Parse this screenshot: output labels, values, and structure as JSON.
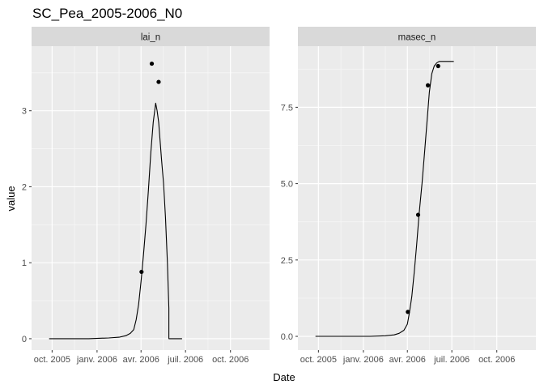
{
  "chart_data": {
    "type": "line",
    "title": "SC_Pea_2005-2006_N0",
    "xlabel": "Date",
    "ylabel": "value",
    "grid": true,
    "facets": [
      {
        "strip": "lai_n",
        "ylim": [
          -0.15,
          3.85
        ],
        "yticks": [
          0,
          1,
          2,
          3
        ],
        "ytick_labels": [
          "0",
          "1",
          "2",
          "3"
        ],
        "simulated": {
          "x": [
            "2005-09-25",
            "2005-12-15",
            "2006-01-25",
            "2006-02-15",
            "2006-03-01",
            "2006-03-10",
            "2006-03-17",
            "2006-03-22",
            "2006-03-27",
            "2006-04-01",
            "2006-04-06",
            "2006-04-11",
            "2006-04-16",
            "2006-04-21",
            "2006-04-26",
            "2006-05-01",
            "2006-05-04",
            "2006-05-07",
            "2006-05-10",
            "2006-05-13",
            "2006-05-17",
            "2006-05-21",
            "2006-05-25",
            "2006-05-28",
            "2006-05-28",
            "2006-06-24"
          ],
          "y": [
            0,
            0,
            0.01,
            0.02,
            0.04,
            0.07,
            0.12,
            0.25,
            0.45,
            0.75,
            1.1,
            1.5,
            1.95,
            2.45,
            2.85,
            3.1,
            3.0,
            2.85,
            2.6,
            2.35,
            2.05,
            1.6,
            1.0,
            0.4,
            0.0,
            0.0
          ]
        },
        "observed": {
          "x": [
            "2006-04-02",
            "2006-04-23",
            "2006-05-07"
          ],
          "y": [
            0.88,
            3.62,
            3.38
          ]
        }
      },
      {
        "strip": "masec_n",
        "ylim": [
          -0.45,
          9.5
        ],
        "yticks": [
          0,
          2.5,
          5,
          7.5
        ],
        "ytick_labels": [
          "0.0",
          "2.5",
          "5.0",
          "7.5"
        ],
        "simulated": {
          "x": [
            "2005-09-25",
            "2006-01-15",
            "2006-02-15",
            "2006-03-05",
            "2006-03-15",
            "2006-03-25",
            "2006-04-01",
            "2006-04-05",
            "2006-04-10",
            "2006-04-15",
            "2006-04-20",
            "2006-04-25",
            "2006-05-01",
            "2006-05-06",
            "2006-05-11",
            "2006-05-16",
            "2006-05-21",
            "2006-05-26",
            "2006-05-31",
            "2006-06-05",
            "2006-06-08",
            "2006-07-05"
          ],
          "y": [
            0,
            0,
            0.02,
            0.05,
            0.1,
            0.2,
            0.4,
            0.75,
            1.3,
            2.1,
            3.0,
            4.0,
            5.0,
            6.0,
            7.0,
            8.0,
            8.6,
            8.85,
            8.95,
            9.0,
            9.0,
            9.0
          ]
        },
        "observed": {
          "x": [
            "2006-04-02",
            "2006-04-23",
            "2006-05-13",
            "2006-06-03"
          ],
          "y": [
            0.8,
            3.98,
            8.22,
            8.85
          ]
        }
      }
    ],
    "x_axis": {
      "ticks": [
        "2005-10-01",
        "2006-01-01",
        "2006-04-01",
        "2006-07-01",
        "2006-10-01"
      ],
      "tick_labels": [
        "oct. 2005",
        "janv. 2006",
        "avr. 2006",
        "juil. 2006",
        "oct. 2006"
      ]
    }
  }
}
